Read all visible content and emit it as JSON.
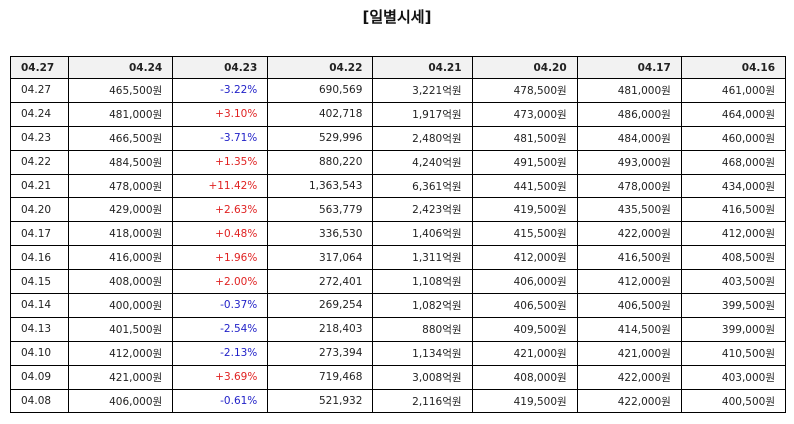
{
  "title": "[일별시세]",
  "columns": [
    "04.27",
    "04.24",
    "04.23",
    "04.22",
    "04.21",
    "04.20",
    "04.17",
    "04.16"
  ],
  "rows": [
    {
      "date": "04.27",
      "close": "465,500원",
      "change": "-3.22%",
      "dir": "down",
      "volume": "690,569",
      "amount": "3,221억원",
      "open": "478,500원",
      "high": "481,000원",
      "low": "461,000원"
    },
    {
      "date": "04.24",
      "close": "481,000원",
      "change": "+3.10%",
      "dir": "up",
      "volume": "402,718",
      "amount": "1,917억원",
      "open": "473,000원",
      "high": "486,000원",
      "low": "464,000원"
    },
    {
      "date": "04.23",
      "close": "466,500원",
      "change": "-3.71%",
      "dir": "down",
      "volume": "529,996",
      "amount": "2,480억원",
      "open": "481,500원",
      "high": "484,000원",
      "low": "460,000원"
    },
    {
      "date": "04.22",
      "close": "484,500원",
      "change": "+1.35%",
      "dir": "up",
      "volume": "880,220",
      "amount": "4,240억원",
      "open": "491,500원",
      "high": "493,000원",
      "low": "468,000원"
    },
    {
      "date": "04.21",
      "close": "478,000원",
      "change": "+11.42%",
      "dir": "up",
      "volume": "1,363,543",
      "amount": "6,361억원",
      "open": "441,500원",
      "high": "478,000원",
      "low": "434,000원"
    },
    {
      "date": "04.20",
      "close": "429,000원",
      "change": "+2.63%",
      "dir": "up",
      "volume": "563,779",
      "amount": "2,423억원",
      "open": "419,500원",
      "high": "435,500원",
      "low": "416,500원"
    },
    {
      "date": "04.17",
      "close": "418,000원",
      "change": "+0.48%",
      "dir": "up",
      "volume": "336,530",
      "amount": "1,406억원",
      "open": "415,500원",
      "high": "422,000원",
      "low": "412,000원"
    },
    {
      "date": "04.16",
      "close": "416,000원",
      "change": "+1.96%",
      "dir": "up",
      "volume": "317,064",
      "amount": "1,311억원",
      "open": "412,000원",
      "high": "416,500원",
      "low": "408,500원"
    },
    {
      "date": "04.15",
      "close": "408,000원",
      "change": "+2.00%",
      "dir": "up",
      "volume": "272,401",
      "amount": "1,108억원",
      "open": "406,000원",
      "high": "412,000원",
      "low": "403,500원"
    },
    {
      "date": "04.14",
      "close": "400,000원",
      "change": "-0.37%",
      "dir": "down",
      "volume": "269,254",
      "amount": "1,082억원",
      "open": "406,500원",
      "high": "406,500원",
      "low": "399,500원"
    },
    {
      "date": "04.13",
      "close": "401,500원",
      "change": "-2.54%",
      "dir": "down",
      "volume": "218,403",
      "amount": "880억원",
      "open": "409,500원",
      "high": "414,500원",
      "low": "399,000원"
    },
    {
      "date": "04.10",
      "close": "412,000원",
      "change": "-2.13%",
      "dir": "down",
      "volume": "273,394",
      "amount": "1,134억원",
      "open": "421,000원",
      "high": "421,000원",
      "low": "410,500원"
    },
    {
      "date": "04.09",
      "close": "421,000원",
      "change": "+3.69%",
      "dir": "up",
      "volume": "719,468",
      "amount": "3,008억원",
      "open": "408,000원",
      "high": "422,000원",
      "low": "403,000원"
    },
    {
      "date": "04.08",
      "close": "406,000원",
      "change": "-0.61%",
      "dir": "down",
      "volume": "521,932",
      "amount": "2,116억원",
      "open": "419,500원",
      "high": "422,000원",
      "low": "400,500원"
    }
  ],
  "colors": {
    "up": "#e02222",
    "down": "#2222c8",
    "header_bg": "#f2f2f2"
  }
}
